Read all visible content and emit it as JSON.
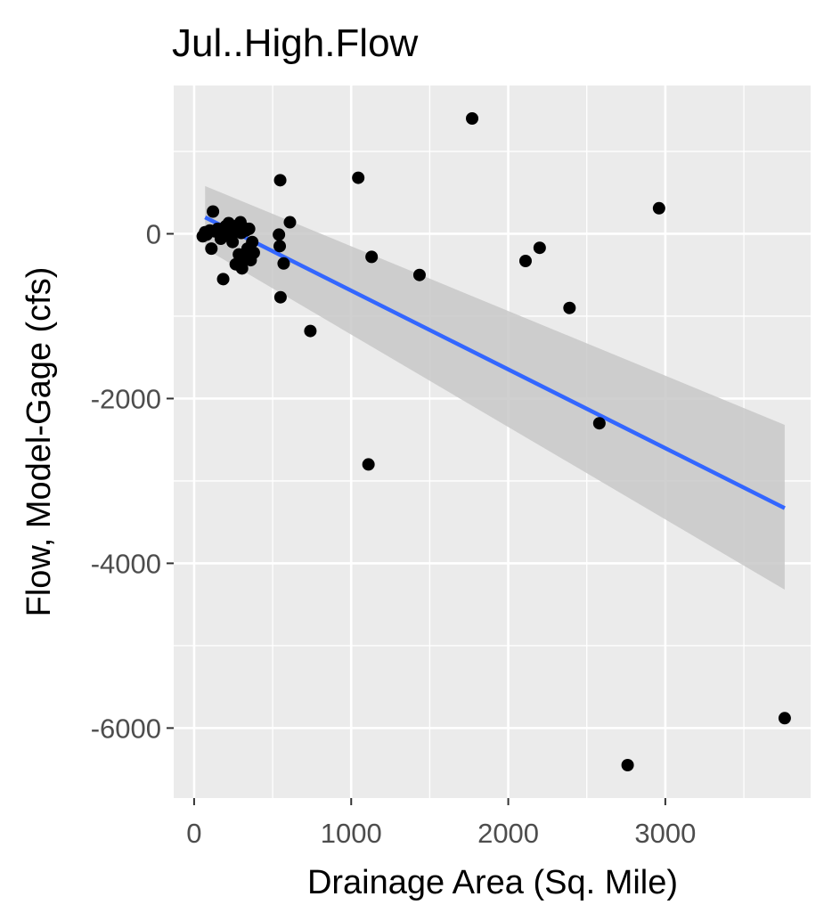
{
  "chart_data": {
    "type": "scatter",
    "title": "Jul..High.Flow",
    "xlabel": "Drainage Area (Sq. Mile)",
    "ylabel": "Flow, Model-Gage (cfs)",
    "xlim": [
      -130,
      3925
    ],
    "ylim": [
      -6850,
      1800
    ],
    "x_ticks": [
      0,
      1000,
      2000,
      3000
    ],
    "x_minor_ticks": [
      500,
      1500,
      2500,
      3500
    ],
    "x_tick_labels": [
      "0",
      "1000",
      "2000",
      "3000"
    ],
    "y_ticks": [
      0,
      -2000,
      -4000,
      -6000
    ],
    "y_minor_ticks": [
      1000,
      -1000,
      -3000,
      -5000
    ],
    "y_tick_labels": [
      "0",
      "-2000",
      "-4000",
      "-6000"
    ],
    "grid": true,
    "legend": "none",
    "colors": {
      "panel": "#ebebeb",
      "grid": "#ffffff",
      "points": "#000000",
      "trend_line": "#3366ff",
      "confidence_band": "#c8c8c8"
    },
    "points": {
      "x": [
        55,
        70,
        80,
        100,
        110,
        120,
        130,
        150,
        170,
        185,
        200,
        210,
        220,
        235,
        245,
        255,
        265,
        275,
        285,
        295,
        300,
        305,
        310,
        320,
        330,
        340,
        350,
        360,
        370,
        380,
        540,
        545,
        548,
        550,
        570,
        610,
        740,
        1045,
        1110,
        1130,
        1435,
        1770,
        2110,
        2200,
        2390,
        2580,
        2760,
        2960,
        3760
      ],
      "y": [
        -30,
        20,
        -10,
        40,
        -180,
        270,
        30,
        60,
        -60,
        -550,
        90,
        -20,
        130,
        50,
        -100,
        20,
        -370,
        100,
        -250,
        140,
        10,
        -420,
        80,
        -300,
        40,
        -180,
        60,
        -320,
        -100,
        -230,
        -10,
        -150,
        650,
        -770,
        -360,
        140,
        -1180,
        680,
        -2800,
        -280,
        -500,
        1400,
        -330,
        -170,
        -900,
        -2300,
        -6450,
        310,
        -5880
      ]
    },
    "trend": {
      "x": [
        70,
        3760
      ],
      "y": [
        200,
        -3330
      ],
      "upper": [
        580,
        -2320
      ],
      "lower": [
        -180,
        -4320
      ]
    }
  }
}
